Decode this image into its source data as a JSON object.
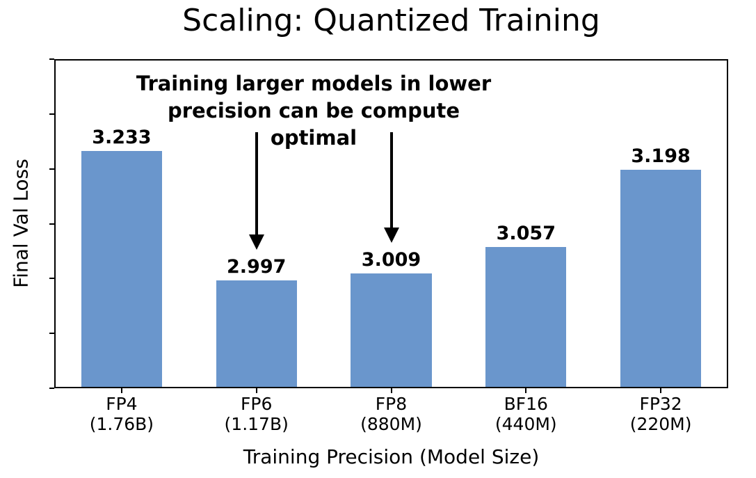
{
  "chart_data": {
    "type": "bar",
    "title": "Scaling: Quantized Training",
    "xlabel": "Training Precision (Model Size)",
    "ylabel": "Final Val Loss",
    "categories": [
      "FP4",
      "FP6",
      "FP8",
      "BF16",
      "FP32"
    ],
    "category_sublabels": [
      "(1.76B)",
      "(1.17B)",
      "(880M)",
      "(440M)",
      "(220M)"
    ],
    "values": [
      3.233,
      2.997,
      3.009,
      3.057,
      3.198
    ],
    "value_labels": [
      "3.233",
      "2.997",
      "3.009",
      "3.057",
      "3.198"
    ],
    "ylim": [
      2.8,
      3.4
    ],
    "yticks": [
      2.8,
      2.9,
      3.0,
      3.1,
      3.2,
      3.3,
      3.4
    ],
    "ytick_labels_visible": false,
    "grid": false,
    "legend": null,
    "bar_color": "#6a96cc",
    "bar_width_fraction": 0.6,
    "frame_color": "#000000",
    "annotation": {
      "line1": "Training larger models in lower",
      "line2": "precision can be compute optimal",
      "arrow_targets": [
        "FP6",
        "FP8"
      ],
      "arrow_category_indices": [
        1,
        2
      ],
      "arrow_color": "#000000"
    }
  }
}
